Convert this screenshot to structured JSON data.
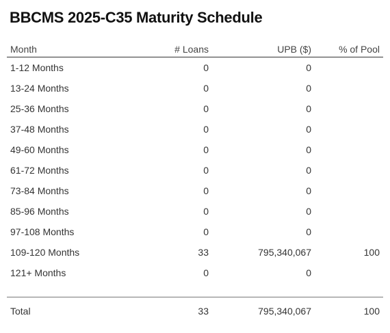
{
  "title": "BBCMS 2025-C35 Maturity Schedule",
  "columns": {
    "month": "Month",
    "loans": "# Loans",
    "upb": "UPB ($)",
    "pool": "% of Pool"
  },
  "rows": [
    {
      "month": "1-12 Months",
      "loans": "0",
      "upb": "0",
      "pool": ""
    },
    {
      "month": "13-24 Months",
      "loans": "0",
      "upb": "0",
      "pool": ""
    },
    {
      "month": "25-36 Months",
      "loans": "0",
      "upb": "0",
      "pool": ""
    },
    {
      "month": "37-48 Months",
      "loans": "0",
      "upb": "0",
      "pool": ""
    },
    {
      "month": "49-60 Months",
      "loans": "0",
      "upb": "0",
      "pool": ""
    },
    {
      "month": "61-72 Months",
      "loans": "0",
      "upb": "0",
      "pool": ""
    },
    {
      "month": "73-84 Months",
      "loans": "0",
      "upb": "0",
      "pool": ""
    },
    {
      "month": "85-96 Months",
      "loans": "0",
      "upb": "0",
      "pool": ""
    },
    {
      "month": "97-108 Months",
      "loans": "0",
      "upb": "0",
      "pool": ""
    },
    {
      "month": "109-120 Months",
      "loans": "33",
      "upb": "795,340,067",
      "pool": "100"
    },
    {
      "month": "121+ Months",
      "loans": "0",
      "upb": "0",
      "pool": ""
    }
  ],
  "total": {
    "month": "Total",
    "loans": "33",
    "upb": "795,340,067",
    "pool": "100"
  }
}
